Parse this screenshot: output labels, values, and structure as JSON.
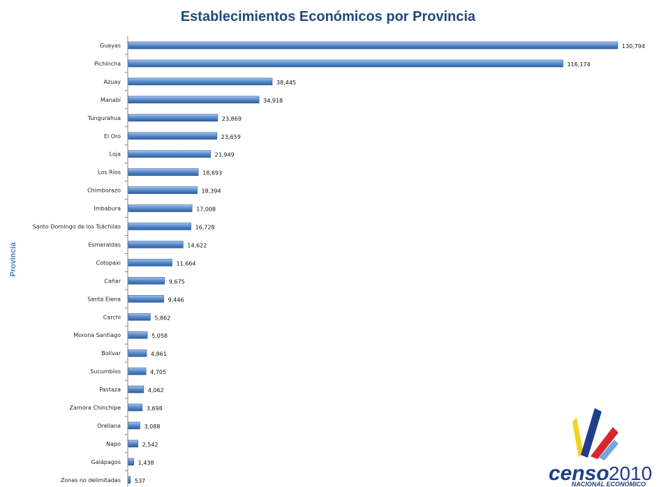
{
  "chart_data": {
    "type": "bar",
    "orientation": "horizontal",
    "title": "Establecimientos Económicos por Provincia",
    "ylabel": "Provincia",
    "xlabel": "",
    "grid": false,
    "legend": "none",
    "bar_color": "#4f81bd",
    "categories": [
      "Guayas",
      "Pichincha",
      "Azuay",
      "Manabí",
      "Tungurahua",
      "El Oro",
      "Loja",
      "Los Ríos",
      "Chimborazo",
      "Imbabura",
      "Santo Domingo de los Tsáchilas",
      "Esmeraldas",
      "Cotopaxi",
      "Cañar",
      "Santa Elena",
      "Carchi",
      "Morona Santiago",
      "Bolívar",
      "Sucumbíos",
      "Pastaza",
      "Zamora Chinchipe",
      "Orellana",
      "Napo",
      "Galápagos",
      "Zonas no delimitadas"
    ],
    "values": [
      130794,
      116174,
      38445,
      34918,
      23869,
      23659,
      21949,
      18693,
      18394,
      17008,
      16728,
      14622,
      11664,
      9675,
      9446,
      5862,
      5058,
      4861,
      4705,
      4062,
      3698,
      3088,
      2542,
      1438,
      537
    ],
    "value_labels": [
      "130,794",
      "116,174",
      "38,445",
      "34,918",
      "23,869",
      "23,659",
      "21,949",
      "18,693",
      "18,394",
      "17,008",
      "16,728",
      "14,622",
      "11,664",
      "9,675",
      "9,446",
      "5,862",
      "5,058",
      "4,861",
      "4,705",
      "4,062",
      "3,698",
      "3,088",
      "2,542",
      "1,438",
      "537"
    ],
    "xlim": [
      0,
      130794
    ]
  },
  "logo": {
    "word": "censo",
    "year": "2010",
    "subtitle": "NACIONAL ECONÓMICO",
    "colors": {
      "blue": "#1f3d8c",
      "red": "#d7262d",
      "yellow": "#f6d21c",
      "lightblue": "#6fa8dc"
    }
  }
}
